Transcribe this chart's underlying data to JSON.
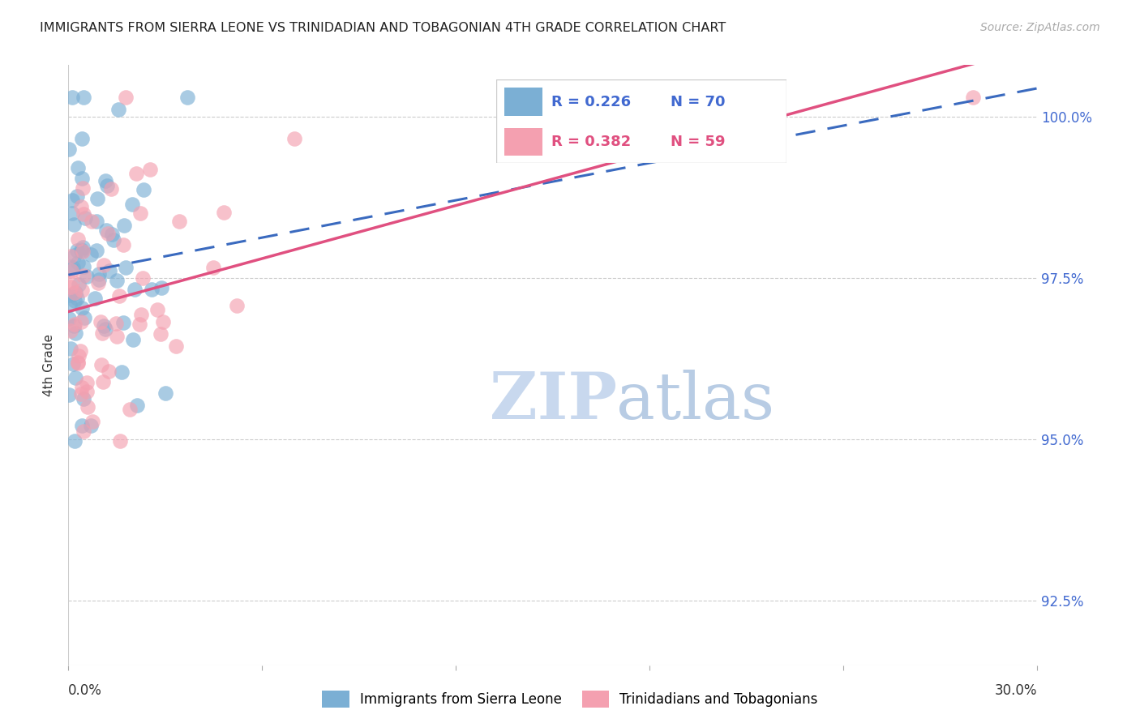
{
  "title": "IMMIGRANTS FROM SIERRA LEONE VS TRINIDADIAN AND TOBAGONIAN 4TH GRADE CORRELATION CHART",
  "source": "Source: ZipAtlas.com",
  "ylabel": "4th Grade",
  "yaxis_values": [
    92.5,
    95.0,
    97.5,
    100.0
  ],
  "xmin": 0.0,
  "xmax": 30.0,
  "ymin": 91.5,
  "ymax": 100.8,
  "legend_r1": "R = 0.226",
  "legend_n1": "N = 70",
  "legend_r2": "R = 0.382",
  "legend_n2": "N = 59",
  "color_blue": "#7bafd4",
  "color_pink": "#f4a0b0",
  "color_blue_line": "#3a6abf",
  "color_pink_line": "#e05080",
  "color_blue_text": "#4169d0",
  "watermark_zip": "ZIP",
  "watermark_atlas": "atlas",
  "watermark_color_zip": "#c8d8ee",
  "watermark_color_atlas": "#b0c8e8"
}
